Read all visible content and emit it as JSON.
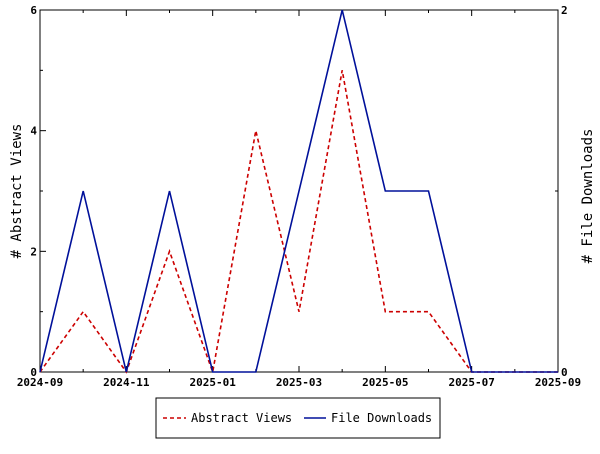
{
  "chart_data": {
    "type": "line",
    "title": "",
    "xlabel": "",
    "ylabel_left": "# Abstract Views",
    "ylabel_right": "# File Downloads",
    "x": [
      "2024-09",
      "2024-10",
      "2024-11",
      "2024-12",
      "2025-01",
      "2025-02",
      "2025-03",
      "2025-04",
      "2025-05",
      "2025-06",
      "2025-07",
      "2025-08",
      "2025-09"
    ],
    "x_tick_labels": [
      "2024-09",
      "2024-11",
      "2025-01",
      "2025-03",
      "2025-05",
      "2025-07",
      "2025-09"
    ],
    "ylim_left": [
      0,
      6
    ],
    "ylim_right": [
      0,
      2
    ],
    "y_ticks_left": [
      "0",
      "2",
      "4",
      "6"
    ],
    "y_ticks_right": [
      "0",
      "2"
    ],
    "grid": false,
    "legend_position": "bottom",
    "series": [
      {
        "name": "Abstract Views",
        "axis": "left",
        "style": "dashed",
        "color": "#cc0000",
        "values": [
          0,
          1,
          0,
          2,
          0,
          4,
          1,
          5,
          1,
          1,
          0,
          0,
          0
        ]
      },
      {
        "name": "File Downloads",
        "axis": "right",
        "style": "solid",
        "color": "#00109a",
        "values": [
          0,
          1,
          0,
          1,
          0,
          0,
          1,
          2,
          1,
          1,
          0,
          0,
          0
        ]
      }
    ]
  }
}
